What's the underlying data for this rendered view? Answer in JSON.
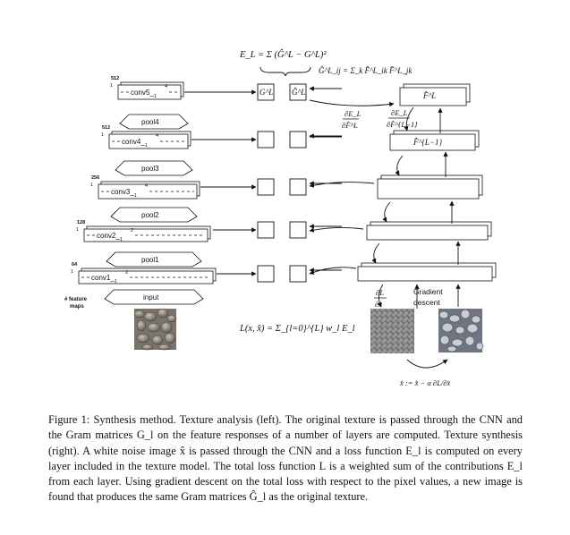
{
  "figure": {
    "energy_formula": "E_L = Σ (Ĝ^L − G^L)²",
    "gram_formula": "Ĝ^L_ij = Σ_k F̂^L_ik F̂^L_jk",
    "left_network": {
      "layers": [
        {
          "channels": "512",
          "label": "conv5_",
          "sub": "1",
          "sup": "4"
        },
        {
          "channels": "512",
          "label": "conv4_",
          "sub": "1",
          "sup": "4"
        },
        {
          "channels": "256",
          "label": "conv3_",
          "sub": "1",
          "sup": "4"
        },
        {
          "channels": "128",
          "label": "conv2_",
          "sub": "1",
          "sup": "2"
        },
        {
          "channels": "64",
          "label": "conv1_",
          "sub": "1",
          "sup": "2"
        }
      ],
      "pools": [
        "pool4",
        "pool3",
        "pool2",
        "pool1"
      ],
      "input_label": "input",
      "feature_maps_label": [
        "# feature",
        "maps"
      ],
      "one_label": "1"
    },
    "gram_labels": {
      "G": "G^L",
      "G_hat": "Ĝ^L"
    },
    "grad_E_F": {
      "num": "∂E_L",
      "den": "∂F̂^L"
    },
    "grad_E_F_prev": {
      "num": "∂E_L",
      "den": "∂F̂^{L−1}"
    },
    "right_labels": {
      "F_hat_L": "F̂^L",
      "F_hat_L_minus_1": "F̂^{L−1}"
    },
    "grad_L_x": {
      "num": "∂L",
      "den": "∂x̂"
    },
    "gradient_descent_label": [
      "Gradient",
      "descent"
    ],
    "loss_formula": "L(x, x̂) = Σ_{l=0}^{L} w_l E_l",
    "update_formula": "x̂ := x̂ − α ∂L/∂x̂"
  },
  "caption": "Figure 1: Synthesis method. Texture analysis (left). The original texture is passed through the CNN and the Gram matrices G_l on the feature responses of a number of layers are computed. Texture synthesis (right). A white noise image x̂ is passed through the CNN and a loss function E_l is computed on every layer included in the texture model. The total loss function L is a weighted sum of the contributions E_l from each layer. Using gradient descent on the total loss with respect to the pixel values, a new image is found that produces the same Gram matrices Ĝ_l as the original texture."
}
